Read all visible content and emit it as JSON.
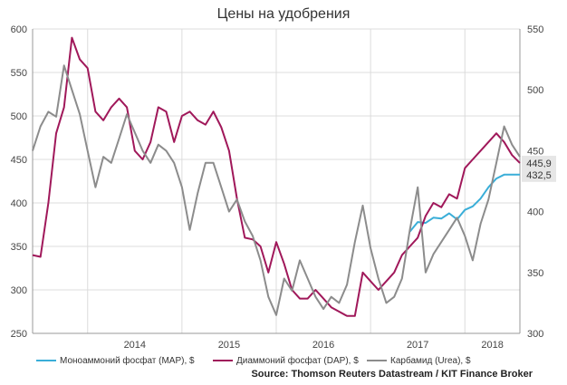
{
  "chart_data": {
    "type": "line",
    "title": "Цены на удобрения",
    "x_axis": {
      "start": "2013-06",
      "end": "2018-08",
      "tick_labels": [
        "2014",
        "2015",
        "2016",
        "2017",
        "2018"
      ]
    },
    "y_left": {
      "range": [
        250,
        600
      ],
      "ticks": [
        250,
        300,
        350,
        400,
        450,
        500,
        550,
        600
      ]
    },
    "y_right": {
      "range": [
        300,
        550
      ],
      "ticks": [
        300,
        350,
        400,
        450,
        500,
        550
      ]
    },
    "grid": true,
    "legend": "bottom",
    "series": [
      {
        "name": "Моноаммоний фосфат (MAP), $",
        "axis": "left",
        "color": "#3aaed8",
        "points": [
          [
            "2017-06",
            367
          ],
          [
            "2017-07",
            378
          ],
          [
            "2017-08",
            377
          ],
          [
            "2017-09",
            383
          ],
          [
            "2017-10",
            382
          ],
          [
            "2017-11",
            388
          ],
          [
            "2017-12",
            381
          ],
          [
            "2018-01",
            392
          ],
          [
            "2018-02",
            396
          ],
          [
            "2018-03",
            405
          ],
          [
            "2018-04",
            418
          ],
          [
            "2018-05",
            428
          ],
          [
            "2018-06",
            432.5
          ],
          [
            "2018-07",
            432.5
          ],
          [
            "2018-08",
            432.5
          ]
        ]
      },
      {
        "name": "Диаммоний фосфат (DAP), $",
        "axis": "left",
        "color": "#a0185a",
        "points": [
          [
            "2013-06",
            340
          ],
          [
            "2013-07",
            338
          ],
          [
            "2013-08",
            400
          ],
          [
            "2013-09",
            480
          ],
          [
            "2013-10",
            510
          ],
          [
            "2013-11",
            590
          ],
          [
            "2013-12",
            565
          ],
          [
            "2014-01",
            555
          ],
          [
            "2014-02",
            505
          ],
          [
            "2014-03",
            495
          ],
          [
            "2014-04",
            510
          ],
          [
            "2014-05",
            520
          ],
          [
            "2014-06",
            510
          ],
          [
            "2014-07",
            460
          ],
          [
            "2014-08",
            450
          ],
          [
            "2014-09",
            470
          ],
          [
            "2014-10",
            510
          ],
          [
            "2014-11",
            505
          ],
          [
            "2014-12",
            470
          ],
          [
            "2015-01",
            500
          ],
          [
            "2015-02",
            505
          ],
          [
            "2015-03",
            495
          ],
          [
            "2015-04",
            490
          ],
          [
            "2015-05",
            505
          ],
          [
            "2015-06",
            487
          ],
          [
            "2015-07",
            460
          ],
          [
            "2015-08",
            405
          ],
          [
            "2015-09",
            360
          ],
          [
            "2015-10",
            358
          ],
          [
            "2015-11",
            350
          ],
          [
            "2015-12",
            320
          ],
          [
            "2016-01",
            355
          ],
          [
            "2016-02",
            330
          ],
          [
            "2016-03",
            300
          ],
          [
            "2016-04",
            290
          ],
          [
            "2016-05",
            290
          ],
          [
            "2016-06",
            300
          ],
          [
            "2016-07",
            290
          ],
          [
            "2016-08",
            280
          ],
          [
            "2016-09",
            275
          ],
          [
            "2016-10",
            270
          ],
          [
            "2016-11",
            270
          ],
          [
            "2016-12",
            320
          ],
          [
            "2017-01",
            310
          ],
          [
            "2017-02",
            300
          ],
          [
            "2017-03",
            310
          ],
          [
            "2017-04",
            320
          ],
          [
            "2017-05",
            340
          ],
          [
            "2017-06",
            350
          ],
          [
            "2017-07",
            360
          ],
          [
            "2017-08",
            385
          ],
          [
            "2017-09",
            400
          ],
          [
            "2017-10",
            395
          ],
          [
            "2017-11",
            410
          ],
          [
            "2017-12",
            405
          ],
          [
            "2018-01",
            440
          ],
          [
            "2018-02",
            450
          ],
          [
            "2018-03",
            460
          ],
          [
            "2018-04",
            470
          ],
          [
            "2018-05",
            480
          ],
          [
            "2018-06",
            470
          ],
          [
            "2018-07",
            455
          ],
          [
            "2018-08",
            445.9
          ]
        ]
      },
      {
        "name": "Карбамид (Urea), $",
        "axis": "right",
        "color": "#8c8c8c",
        "points": [
          [
            "2013-06",
            450
          ],
          [
            "2013-07",
            470
          ],
          [
            "2013-08",
            482
          ],
          [
            "2013-09",
            478
          ],
          [
            "2013-10",
            520
          ],
          [
            "2013-11",
            500
          ],
          [
            "2013-12",
            480
          ],
          [
            "2014-01",
            450
          ],
          [
            "2014-02",
            420
          ],
          [
            "2014-03",
            445
          ],
          [
            "2014-04",
            440
          ],
          [
            "2014-05",
            460
          ],
          [
            "2014-06",
            480
          ],
          [
            "2014-07",
            465
          ],
          [
            "2014-08",
            450
          ],
          [
            "2014-09",
            440
          ],
          [
            "2014-10",
            455
          ],
          [
            "2014-11",
            450
          ],
          [
            "2014-12",
            440
          ],
          [
            "2015-01",
            420
          ],
          [
            "2015-02",
            385
          ],
          [
            "2015-03",
            415
          ],
          [
            "2015-04",
            440
          ],
          [
            "2015-05",
            440
          ],
          [
            "2015-06",
            420
          ],
          [
            "2015-07",
            400
          ],
          [
            "2015-08",
            410
          ],
          [
            "2015-09",
            392
          ],
          [
            "2015-10",
            380
          ],
          [
            "2015-11",
            360
          ],
          [
            "2015-12",
            330
          ],
          [
            "2016-01",
            315
          ],
          [
            "2016-02",
            345
          ],
          [
            "2016-03",
            335
          ],
          [
            "2016-04",
            360
          ],
          [
            "2016-05",
            345
          ],
          [
            "2016-06",
            330
          ],
          [
            "2016-07",
            320
          ],
          [
            "2016-08",
            330
          ],
          [
            "2016-09",
            325
          ],
          [
            "2016-10",
            340
          ],
          [
            "2016-11",
            375
          ],
          [
            "2016-12",
            405
          ],
          [
            "2017-01",
            370
          ],
          [
            "2017-02",
            345
          ],
          [
            "2017-03",
            325
          ],
          [
            "2017-04",
            330
          ],
          [
            "2017-05",
            345
          ],
          [
            "2017-06",
            385
          ],
          [
            "2017-07",
            420
          ],
          [
            "2017-08",
            350
          ],
          [
            "2017-09",
            365
          ],
          [
            "2017-10",
            375
          ],
          [
            "2017-11",
            385
          ],
          [
            "2017-12",
            395
          ],
          [
            "2018-01",
            380
          ],
          [
            "2018-02",
            360
          ],
          [
            "2018-03",
            390
          ],
          [
            "2018-04",
            410
          ],
          [
            "2018-05",
            440
          ],
          [
            "2018-06",
            470
          ],
          [
            "2018-07",
            455
          ],
          [
            "2018-08",
            445
          ]
        ]
      }
    ],
    "end_labels": [
      {
        "series": "Диаммоний фосфат (DAP), $",
        "text": "445,9",
        "value": 445.9
      },
      {
        "series": "Моноаммоний фосфат (MAP), $",
        "text": "432,5",
        "value": 432.5
      }
    ],
    "source": "Source: Thomson Reuters Datastream / KIT Finance Broker"
  }
}
